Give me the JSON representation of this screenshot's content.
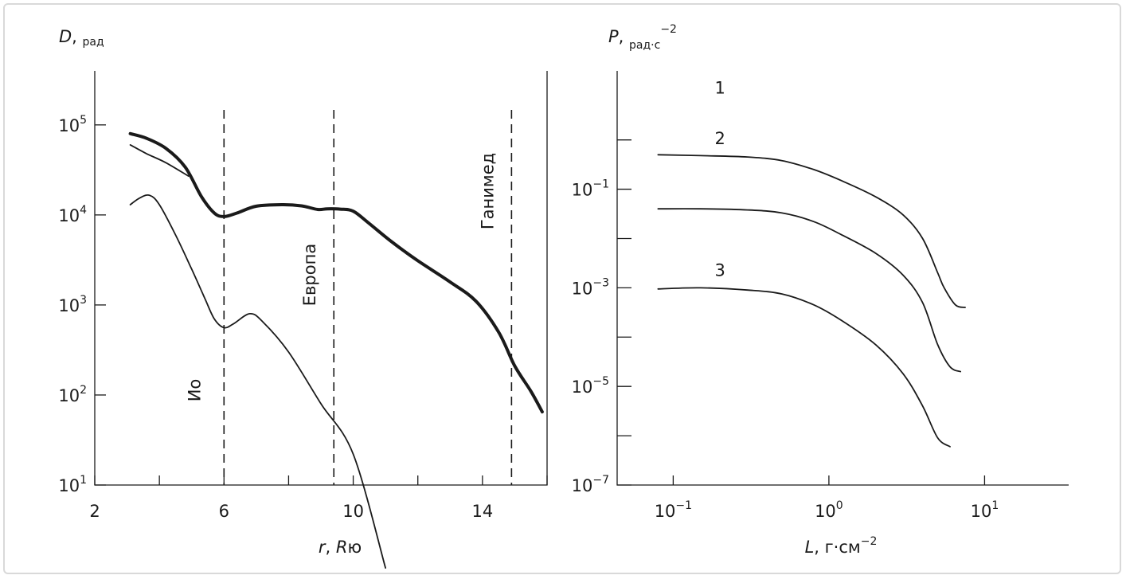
{
  "chart_data": [
    {
      "type": "line",
      "ylabel": {
        "var": "D",
        "unit": "рад"
      },
      "xlabel": {
        "var": "r",
        "sep": ", ",
        "unit_var": "R",
        "unit_sub": "ю"
      },
      "xlim": [
        2,
        16
      ],
      "ylim_log10": [
        1,
        5.6
      ],
      "xticks": [
        2,
        4,
        6,
        8,
        10,
        12,
        14,
        16
      ],
      "xtick_labels": [
        "2",
        "6",
        "10",
        "14"
      ],
      "xtick_label_values": [
        2,
        6,
        10,
        14
      ],
      "yticks": [
        {
          "exp": 1,
          "base": "10",
          "sup": "1"
        },
        {
          "exp": 2,
          "base": "10",
          "sup": "2"
        },
        {
          "exp": 3,
          "base": "10",
          "sup": "3"
        },
        {
          "exp": 4,
          "base": "10",
          "sup": "4"
        },
        {
          "exp": 5,
          "base": "10",
          "sup": "5"
        }
      ],
      "moons": [
        {
          "name": "Ио",
          "x": 6.0
        },
        {
          "name": "Европа",
          "x": 9.4
        },
        {
          "name": "Ганимед",
          "x": 14.9
        }
      ],
      "series": [
        {
          "style": "bold",
          "x": [
            3.1,
            3.6,
            4.2,
            4.8,
            5.3,
            5.7,
            6.0,
            6.4,
            7.0,
            7.8,
            8.4,
            8.9,
            9.2,
            9.6,
            10.0,
            10.5,
            11.2,
            12.0,
            13.0,
            13.8,
            14.5,
            15.0,
            15.5,
            15.85
          ],
          "y": [
            80000,
            71000,
            55000,
            34000,
            16000,
            10500,
            9600,
            10500,
            12500,
            13000,
            12600,
            11500,
            11700,
            11600,
            11000,
            8000,
            5000,
            3100,
            1800,
            1100,
            500,
            210,
            110,
            65
          ]
        },
        {
          "style": "thin",
          "x": [
            3.1,
            3.6,
            4.2,
            4.9
          ],
          "y": [
            60000,
            48000,
            38000,
            27000
          ]
        },
        {
          "style": "thin",
          "x": [
            3.1,
            3.4,
            3.7,
            4.0,
            4.5,
            5.0,
            5.4,
            5.7,
            6.0,
            6.3,
            6.8,
            7.2,
            8.0,
            9.0,
            10.0,
            11.0
          ],
          "y": [
            13000,
            15500,
            16500,
            13000,
            6000,
            2500,
            1200,
            700,
            560,
            620,
            800,
            650,
            300,
            80,
            22,
            1.2
          ]
        }
      ]
    },
    {
      "type": "line",
      "ylabel": {
        "var": "P",
        "unit": "рад·с",
        "unit_sup": "−2"
      },
      "xlabel": {
        "var": "L",
        "unit": "г·см",
        "unit_sup": "−2"
      },
      "xlim_log10": [
        -1.36,
        1.54
      ],
      "ylim_log10": [
        -7,
        1.4
      ],
      "xticks": [
        {
          "exp": -1,
          "base": "10",
          "sup": "−1"
        },
        {
          "exp": 0,
          "base": "10",
          "sup": "0"
        },
        {
          "exp": 1,
          "base": "10",
          "sup": "1"
        }
      ],
      "yticks": [
        {
          "exp": -7,
          "base": "10",
          "sup": "−7"
        },
        {
          "exp": -5,
          "base": "10",
          "sup": "−5"
        },
        {
          "exp": -3,
          "base": "10",
          "sup": "−3"
        },
        {
          "exp": -1,
          "base": "10",
          "sup": "−1"
        }
      ],
      "y_minor_ticks": [
        -6,
        -4,
        -2,
        0
      ],
      "series": [
        {
          "name": "1",
          "label_at": [
            0.2,
            0.94
          ],
          "x": [
            0.08,
            0.15,
            0.3,
            0.5,
            0.8,
            1.2,
            2.0,
            3.0,
            4.0,
            5.0,
            5.5,
            6.5,
            7.5
          ],
          "y": [
            0.5,
            0.48,
            0.45,
            0.38,
            0.25,
            0.15,
            0.07,
            0.03,
            0.01,
            0.002,
            0.001,
            0.00045,
            0.0004
          ]
        },
        {
          "name": "2",
          "label_at": [
            0.2,
            -0.09
          ],
          "x": [
            0.08,
            0.15,
            0.3,
            0.5,
            0.8,
            1.2,
            2.0,
            3.0,
            4.0,
            5.0,
            6.0,
            7.0
          ],
          "y": [
            0.04,
            0.04,
            0.038,
            0.033,
            0.022,
            0.012,
            0.005,
            0.0018,
            0.0005,
            7e-05,
            2.5e-05,
            2e-05
          ]
        },
        {
          "name": "3",
          "label_at": [
            0.2,
            -2.76
          ],
          "x": [
            0.08,
            0.15,
            0.3,
            0.5,
            0.8,
            1.2,
            2.0,
            3.0,
            4.0,
            5.0,
            6.0
          ],
          "y": [
            0.00095,
            0.001,
            0.0009,
            0.00075,
            0.00045,
            0.00022,
            7e-05,
            1.8e-05,
            4e-06,
            9e-07,
            6e-07
          ]
        }
      ]
    }
  ]
}
